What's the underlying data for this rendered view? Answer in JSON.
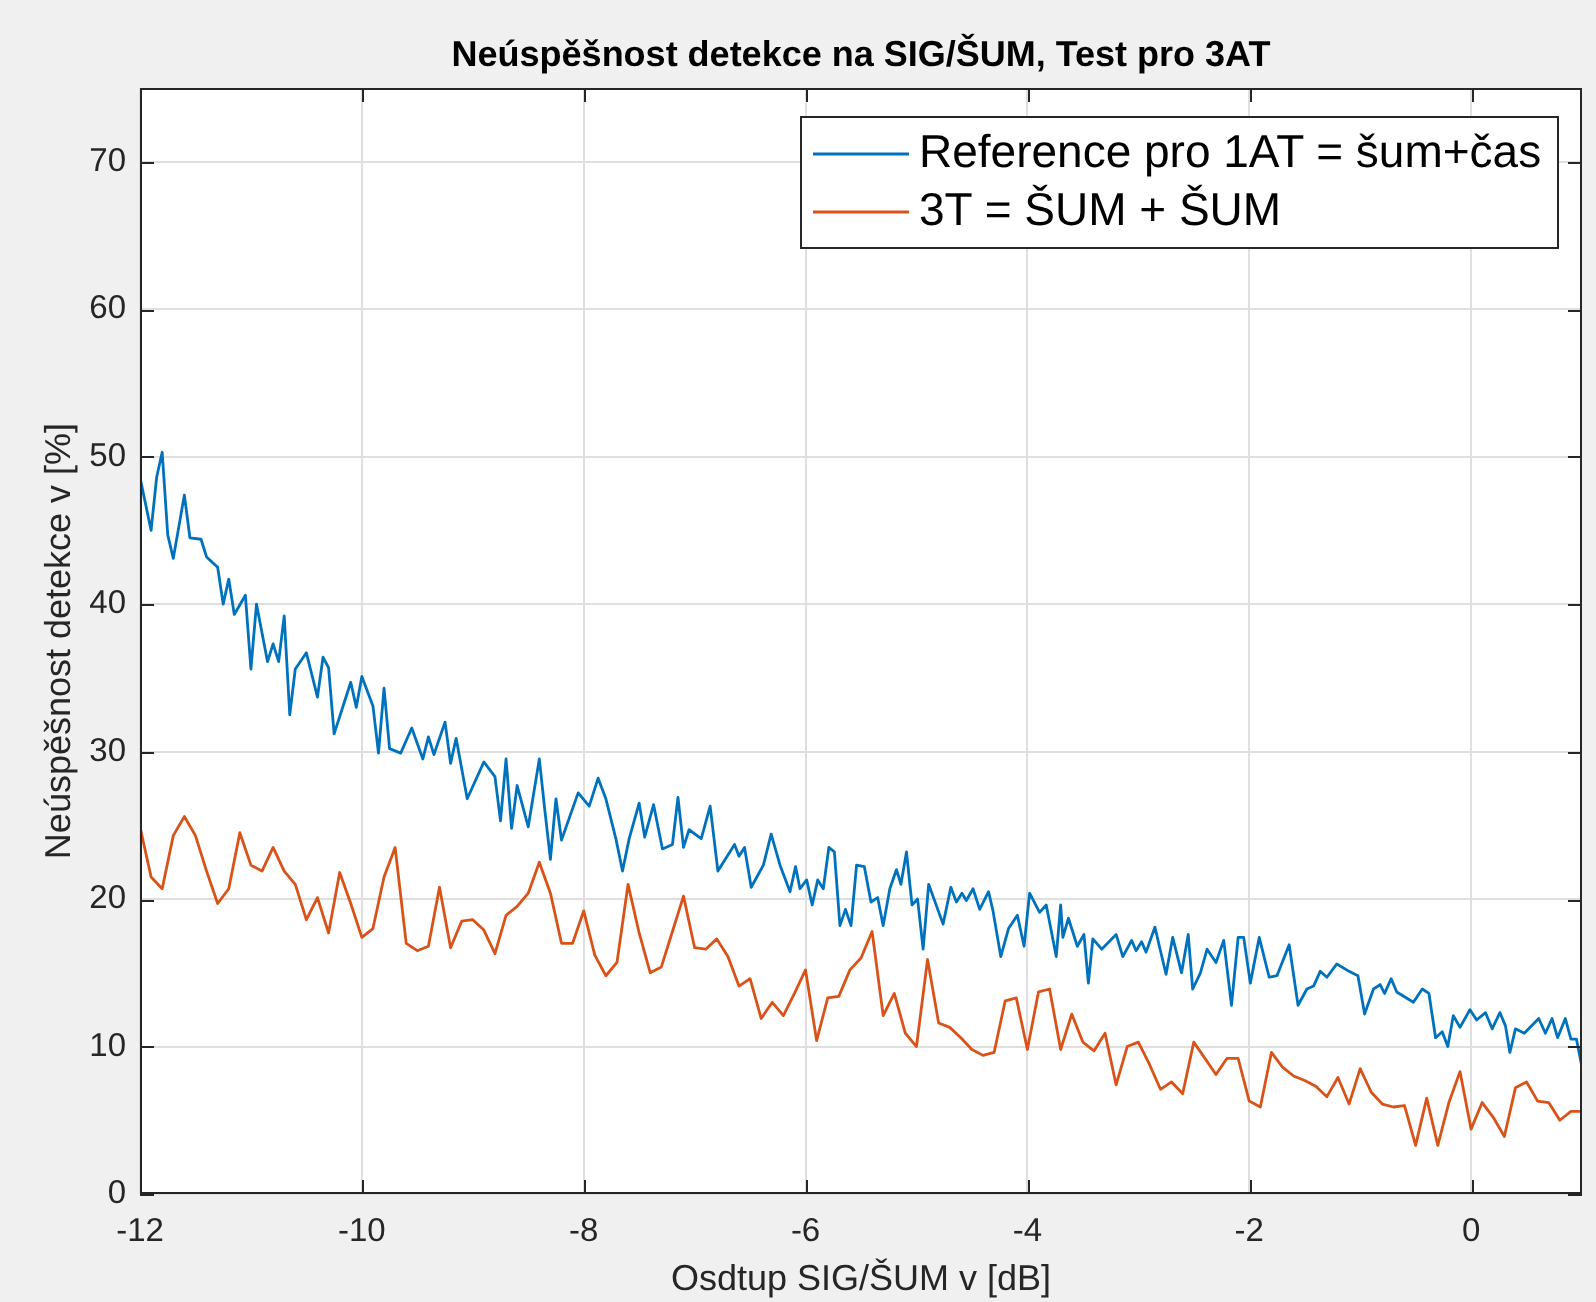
{
  "chart_data": {
    "type": "line",
    "title": "Neúspěšnost detekce na SIG/ŠUM, Test pro 3AT",
    "xlabel": "Osdtup SIG/ŠUM v [dB]",
    "ylabel": "Neúspěšnost detekce v [%]",
    "xlim": [
      -12,
      1
    ],
    "xticks": [
      -12,
      -10,
      -8,
      -6,
      -4,
      -2,
      0
    ],
    "ylim": [
      0,
      75
    ],
    "yticks": [
      0,
      10,
      20,
      30,
      40,
      50,
      60,
      70
    ],
    "grid": true,
    "legend": "top right",
    "line_style": "solid",
    "series": [
      {
        "name": "Reference pro 1AT = šum+čas",
        "color": "#0072bd",
        "x": [
          -12,
          -11.9,
          -11.85,
          -11.8,
          -11.75,
          -11.7,
          -11.6,
          -11.55,
          -11.45,
          -11.4,
          -11.3,
          -11.25,
          -11.2,
          -11.15,
          -11.05,
          -11,
          -10.95,
          -10.85,
          -10.8,
          -10.75,
          -10.7,
          -10.65,
          -10.6,
          -10.5,
          -10.4,
          -10.35,
          -10.3,
          -10.25,
          -10.1,
          -10.05,
          -10,
          -9.9,
          -9.85,
          -9.8,
          -9.75,
          -9.65,
          -9.55,
          -9.45,
          -9.4,
          -9.35,
          -9.25,
          -9.2,
          -9.15,
          -9.05,
          -8.9,
          -8.8,
          -8.75,
          -8.7,
          -8.65,
          -8.6,
          -8.5,
          -8.4,
          -8.35,
          -8.3,
          -8.25,
          -8.2,
          -8.05,
          -7.95,
          -7.87,
          -7.8,
          -7.71,
          -7.65,
          -7.59,
          -7.5,
          -7.45,
          -7.37,
          -7.29,
          -7.2,
          -7.15,
          -7.1,
          -7.05,
          -6.94,
          -6.86,
          -6.79,
          -6.64,
          -6.6,
          -6.55,
          -6.49,
          -6.38,
          -6.31,
          -6.23,
          -6.14,
          -6.09,
          -6.05,
          -5.99,
          -5.94,
          -5.89,
          -5.84,
          -5.79,
          -5.74,
          -5.69,
          -5.64,
          -5.59,
          -5.54,
          -5.47,
          -5.41,
          -5.35,
          -5.3,
          -5.24,
          -5.18,
          -5.14,
          -5.09,
          -5.04,
          -4.99,
          -4.94,
          -4.89,
          -4.76,
          -4.69,
          -4.64,
          -4.59,
          -4.55,
          -4.49,
          -4.43,
          -4.35,
          -4.31,
          -4.24,
          -4.17,
          -4.09,
          -4.03,
          -3.98,
          -3.89,
          -3.83,
          -3.74,
          -3.7,
          -3.68,
          -3.63,
          -3.55,
          -3.49,
          -3.45,
          -3.41,
          -3.33,
          -3.2,
          -3.14,
          -3.06,
          -3.02,
          -2.97,
          -2.93,
          -2.85,
          -2.81,
          -2.75,
          -2.69,
          -2.61,
          -2.55,
          -2.51,
          -2.44,
          -2.38,
          -2.3,
          -2.23,
          -2.16,
          -2.1,
          -2.05,
          -1.99,
          -1.91,
          -1.82,
          -1.75,
          -1.64,
          -1.56,
          -1.48,
          -1.42,
          -1.36,
          -1.3,
          -1.21,
          -1.1,
          -1.02,
          -0.96,
          -0.88,
          -0.82,
          -0.78,
          -0.72,
          -0.67,
          -0.52,
          -0.44,
          -0.38,
          -0.32,
          -0.26,
          -0.21,
          -0.16,
          -0.1,
          -0.01,
          0.05,
          0.13,
          0.19,
          0.26,
          0.31,
          0.35,
          0.4,
          0.48,
          0.61,
          0.67,
          0.73,
          0.78,
          0.85,
          0.9,
          0.95,
          1
        ],
        "values": [
          48.6,
          45.0,
          48.6,
          50.3,
          44.7,
          43.1,
          47.4,
          44.5,
          44.4,
          43.2,
          42.5,
          40.0,
          41.7,
          39.3,
          40.6,
          35.6,
          40.0,
          36.1,
          37.3,
          36.1,
          39.2,
          32.5,
          35.6,
          36.7,
          33.7,
          36.4,
          35.7,
          31.2,
          34.7,
          33.0,
          35.1,
          33.1,
          29.9,
          34.3,
          30.2,
          29.9,
          31.6,
          29.5,
          31.0,
          29.8,
          32.0,
          29.2,
          30.9,
          26.8,
          29.3,
          28.3,
          25.3,
          29.5,
          24.8,
          27.7,
          24.9,
          29.5,
          26.0,
          22.7,
          26.8,
          24.0,
          27.2,
          26.3,
          28.2,
          26.8,
          24.1,
          21.9,
          24.1,
          26.5,
          24.2,
          26.4,
          23.4,
          23.7,
          26.9,
          23.5,
          24.7,
          24.1,
          26.3,
          21.9,
          23.7,
          22.9,
          23.5,
          20.8,
          22.3,
          24.4,
          22.3,
          20.5,
          22.2,
          20.7,
          21.3,
          19.6,
          21.3,
          20.7,
          23.5,
          23.2,
          18.2,
          19.3,
          18.2,
          22.3,
          22.2,
          19.8,
          20.1,
          18.2,
          20.7,
          22.0,
          21.0,
          23.2,
          19.6,
          20.0,
          16.6,
          21.0,
          18.3,
          20.8,
          19.8,
          20.4,
          19.9,
          20.7,
          19.3,
          20.5,
          19.2,
          16.1,
          18.0,
          18.9,
          16.8,
          20.4,
          19.1,
          19.6,
          16.1,
          19.6,
          17.4,
          18.7,
          16.8,
          17.6,
          14.3,
          17.3,
          16.6,
          17.6,
          16.1,
          17.2,
          16.5,
          17.1,
          16.4,
          18.1,
          16.8,
          14.9,
          17.4,
          15.0,
          17.6,
          13.9,
          15.0,
          16.6,
          15.7,
          17.2,
          12.8,
          17.4,
          17.4,
          14.3,
          17.4,
          14.7,
          14.8,
          16.9,
          12.8,
          13.9,
          14.1,
          15.1,
          14.7,
          15.6,
          15.1,
          14.8,
          12.2,
          13.9,
          14.2,
          13.6,
          14.6,
          13.7,
          13.0,
          13.9,
          13.6,
          10.6,
          11.0,
          10.0,
          12.1,
          11.3,
          12.5,
          11.8,
          12.3,
          11.2,
          12.3,
          11.4,
          9.6,
          11.2,
          10.9,
          11.9,
          10.9,
          11.9,
          10.6,
          11.9,
          10.5,
          10.5,
          8.6
        ]
      },
      {
        "name": "3T = ŠUM + ŠUM",
        "color": "#d95319",
        "x": [
          -12,
          -11.9,
          -11.8,
          -11.7,
          -11.6,
          -11.5,
          -11.4,
          -11.3,
          -11.2,
          -11.1,
          -11,
          -10.9,
          -10.8,
          -10.7,
          -10.6,
          -10.5,
          -10.4,
          -10.3,
          -10.2,
          -10.1,
          -10,
          -9.9,
          -9.8,
          -9.7,
          -9.6,
          -9.5,
          -9.4,
          -9.3,
          -9.2,
          -9.1,
          -9,
          -8.9,
          -8.8,
          -8.7,
          -8.6,
          -8.5,
          -8.4,
          -8.3,
          -8.2,
          -8.1,
          -8,
          -7.9,
          -7.8,
          -7.7,
          -7.6,
          -7.5,
          -7.4,
          -7.3,
          -7.2,
          -7.1,
          -7,
          -6.9,
          -6.8,
          -6.7,
          -6.6,
          -6.5,
          -6.4,
          -6.3,
          -6.2,
          -6.1,
          -6,
          -5.9,
          -5.8,
          -5.7,
          -5.6,
          -5.5,
          -5.4,
          -5.3,
          -5.2,
          -5.1,
          -5,
          -4.9,
          -4.8,
          -4.7,
          -4.6,
          -4.5,
          -4.4,
          -4.3,
          -4.2,
          -4.1,
          -4,
          -3.9,
          -3.8,
          -3.7,
          -3.6,
          -3.5,
          -3.4,
          -3.3,
          -3.2,
          -3.1,
          -3,
          -2.9,
          -2.8,
          -2.7,
          -2.6,
          -2.5,
          -2.4,
          -2.3,
          -2.2,
          -2.1,
          -2,
          -1.9,
          -1.8,
          -1.7,
          -1.6,
          -1.5,
          -1.4,
          -1.3,
          -1.2,
          -1.1,
          -1,
          -0.9,
          -0.8,
          -0.7,
          -0.6,
          -0.5,
          -0.4,
          -0.3,
          -0.2,
          -0.1,
          0,
          0.1,
          0.2,
          0.3,
          0.4,
          0.5,
          0.6,
          0.7,
          0.8,
          0.9,
          1
        ],
        "values": [
          24.9,
          21.5,
          20.7,
          24.3,
          25.6,
          24.3,
          21.9,
          19.7,
          20.7,
          24.5,
          22.3,
          21.9,
          23.5,
          21.9,
          21.0,
          18.6,
          20.1,
          17.7,
          21.8,
          19.7,
          17.4,
          18.0,
          21.5,
          23.5,
          17.0,
          16.5,
          16.8,
          20.8,
          16.7,
          18.5,
          18.6,
          17.9,
          16.3,
          18.9,
          19.5,
          20.4,
          22.5,
          20.4,
          17.0,
          17.0,
          19.2,
          16.2,
          14.8,
          15.7,
          21.0,
          17.7,
          15.0,
          15.4,
          17.8,
          20.2,
          16.7,
          16.6,
          17.3,
          16.1,
          14.1,
          14.6,
          11.9,
          13.0,
          12.1,
          13.6,
          15.2,
          10.4,
          13.3,
          13.4,
          15.2,
          16.0,
          17.8,
          12.1,
          13.6,
          10.9,
          10.0,
          15.9,
          11.6,
          11.3,
          10.6,
          9.8,
          9.4,
          9.6,
          13.1,
          13.3,
          9.8,
          13.7,
          13.9,
          9.8,
          12.2,
          10.3,
          9.7,
          10.9,
          7.4,
          10.0,
          10.3,
          8.8,
          7.1,
          7.6,
          6.8,
          10.3,
          9.2,
          8.1,
          9.2,
          9.2,
          6.3,
          5.9,
          9.6,
          8.6,
          8.0,
          7.7,
          7.3,
          6.6,
          7.9,
          6.1,
          8.5,
          6.9,
          6.1,
          5.9,
          6.0,
          3.3,
          6.5,
          3.3,
          6.2,
          8.3,
          4.4,
          6.2,
          5.2,
          3.9,
          7.2,
          7.6,
          6.3,
          6.2,
          5.0,
          5.6,
          5.6
        ]
      }
    ]
  }
}
